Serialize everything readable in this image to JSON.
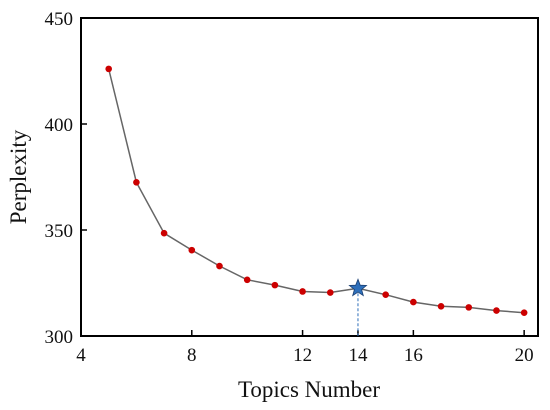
{
  "chart_data": {
    "type": "line",
    "xlabel": "Topics Number",
    "ylabel": "Perplexity",
    "xlim": [
      4,
      20.5
    ],
    "ylim": [
      300,
      450
    ],
    "xticks": [
      4,
      8,
      12,
      14,
      16,
      20
    ],
    "yticks": [
      300,
      350,
      400,
      450
    ],
    "highlight_tick": 14,
    "grid": false,
    "series": [
      {
        "x": [
          5,
          6,
          7,
          8,
          9,
          10,
          11,
          12,
          13,
          14,
          15,
          16,
          17,
          18,
          19,
          20
        ],
        "y": [
          426,
          372.5,
          348.5,
          340.5,
          333,
          326.5,
          324,
          321,
          320.5,
          322.5,
          319.5,
          316,
          314,
          313.5,
          312,
          311
        ]
      }
    ],
    "highlight_point": {
      "x": 14,
      "y": 322.5
    }
  },
  "colors": {
    "line": "#666666",
    "marker": "#cc0000",
    "star": "#2e6fba",
    "highlight_tick": "#2e6fba",
    "axis": "#000000"
  }
}
